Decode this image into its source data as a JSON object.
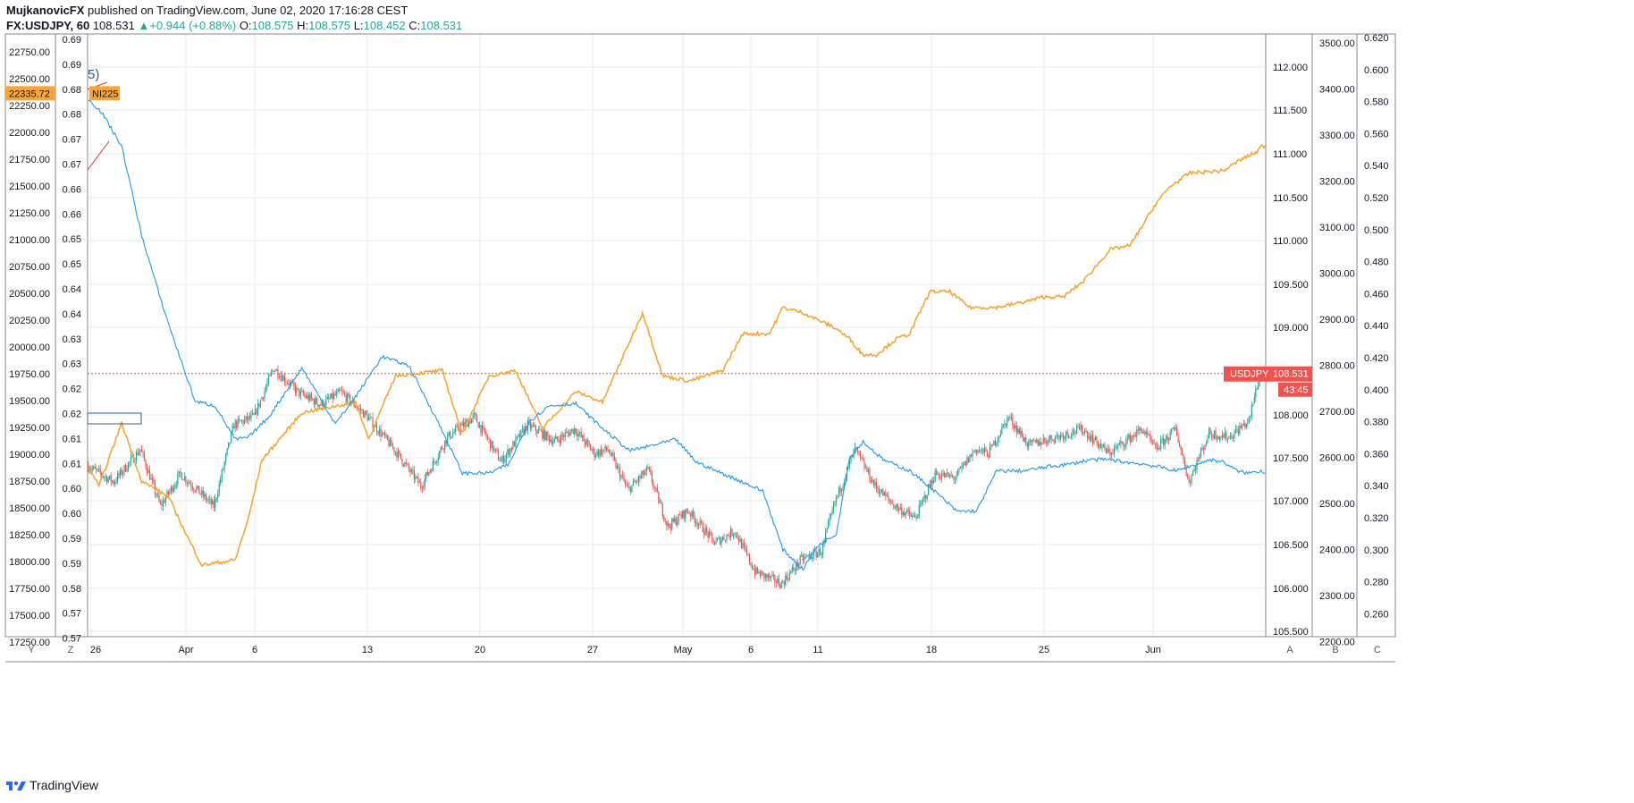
{
  "header": {
    "author": "MujkanovicFX",
    "published_text": "published on TradingView.com, June 02, 2020 17:16:28 CEST",
    "symbol": "FX:USDJPY, 60",
    "last": "108.531",
    "change_arrow": "▲",
    "change": "+0.944 (+0.88%)",
    "o_label": "O:",
    "o_val": "108.575",
    "h_label": "H:",
    "h_val": "108.575",
    "l_label": "L:",
    "l_val": "108.452",
    "c_label": "C:",
    "c_val": "108.531"
  },
  "footer": {
    "brand": "TradingView",
    "brand_icon": "tradingview-logo-icon"
  },
  "axis_buttons": {
    "y": "Y",
    "z": "Z",
    "a": "A",
    "b": "B",
    "c": "C"
  },
  "colors": {
    "up": "#26a69a",
    "down": "#ef5350",
    "nikkei": "#f7a535",
    "blue": "#2196f3",
    "price_tag": "#ef5350",
    "nikkei_tag": "#f7a535",
    "grid": "#e8ebf0"
  },
  "chart_data": {
    "type": "line",
    "title": "FX:USDJPY, 60",
    "x_ticks": [
      "26",
      "Apr",
      "6",
      "13",
      "20",
      "27",
      "May",
      "6",
      "11",
      "18",
      "25",
      "Jun"
    ],
    "axes": {
      "usdjpy_right": {
        "ticks": [
          "112.000",
          "111.500",
          "111.000",
          "110.500",
          "110.000",
          "109.500",
          "109.000",
          "108.000",
          "107.500",
          "107.000",
          "106.500",
          "106.000",
          "105.500"
        ],
        "range": [
          105.3,
          112.7
        ]
      },
      "left_outer": {
        "ticks": [
          "22750.00",
          "22500.00",
          "22250.00",
          "22000.00",
          "21750.00",
          "21500.00",
          "21250.00",
          "21000.00",
          "20750.00",
          "20500.00",
          "20250.00",
          "20000.00",
          "19750.00",
          "19500.00",
          "19250.00",
          "19000.00",
          "18750.00",
          "18500.00",
          "18250.00",
          "18000.00",
          "17750.00",
          "17500.00",
          "17250.00"
        ],
        "range": [
          17170,
          22900
        ]
      },
      "left_inner": {
        "ticks": [
          "0.69",
          "0.69",
          "0.68",
          "0.68",
          "0.67",
          "0.67",
          "0.66",
          "0.66",
          "0.65",
          "0.65",
          "0.64",
          "0.64",
          "0.63",
          "0.63",
          "0.62",
          "0.62",
          "0.61",
          "0.61",
          "0.60",
          "0.60",
          "0.59",
          "0.59",
          "0.58",
          "0.57",
          "0.57"
        ]
      },
      "right_b": {
        "ticks": [
          "3500.00",
          "3400.00",
          "3300.00",
          "3200.00",
          "3100.00",
          "3000.00",
          "2900.00",
          "2800.00",
          "2700.00",
          "2600.00",
          "2500.00",
          "2400.00",
          "2300.00",
          "2200.00"
        ],
        "range": [
          2175,
          3520
        ]
      },
      "right_c": {
        "ticks": [
          "0.620",
          "0.600",
          "0.580",
          "0.560",
          "0.540",
          "0.520",
          "0.500",
          "0.480",
          "0.460",
          "0.440",
          "0.420",
          "0.400",
          "0.380",
          "0.360",
          "0.340",
          "0.320",
          "0.300",
          "0.280",
          "0.260"
        ],
        "range": [
          0.258,
          0.623
        ]
      }
    },
    "series": [
      {
        "name": "USDJPY",
        "axis": "usdjpy_right",
        "style": "candles",
        "anchors": [
          [
            0,
            107.4
          ],
          [
            20,
            107.2
          ],
          [
            40,
            107.6
          ],
          [
            55,
            106.9
          ],
          [
            70,
            107.3
          ],
          [
            95,
            106.9
          ],
          [
            110,
            107.9
          ],
          [
            125,
            108.0
          ],
          [
            140,
            108.6
          ],
          [
            158,
            108.3
          ],
          [
            175,
            108.15
          ],
          [
            190,
            108.3
          ],
          [
            210,
            108.0
          ],
          [
            230,
            107.6
          ],
          [
            250,
            107.15
          ],
          [
            270,
            107.75
          ],
          [
            290,
            108.0
          ],
          [
            310,
            107.45
          ],
          [
            330,
            107.9
          ],
          [
            350,
            107.7
          ],
          [
            365,
            107.85
          ],
          [
            380,
            107.55
          ],
          [
            390,
            107.6
          ],
          [
            405,
            107.1
          ],
          [
            420,
            107.35
          ],
          [
            435,
            106.65
          ],
          [
            450,
            106.85
          ],
          [
            470,
            106.45
          ],
          [
            485,
            106.6
          ],
          [
            500,
            106.1
          ],
          [
            520,
            105.95
          ],
          [
            535,
            106.25
          ],
          [
            550,
            106.35
          ],
          [
            560,
            106.95
          ],
          [
            575,
            107.6
          ],
          [
            590,
            107.15
          ],
          [
            605,
            106.9
          ],
          [
            620,
            106.75
          ],
          [
            635,
            107.3
          ],
          [
            650,
            107.25
          ],
          [
            665,
            107.6
          ],
          [
            675,
            107.55
          ],
          [
            690,
            108.0
          ],
          [
            705,
            107.65
          ],
          [
            725,
            107.75
          ],
          [
            745,
            107.85
          ],
          [
            765,
            107.55
          ],
          [
            790,
            107.85
          ],
          [
            800,
            107.6
          ],
          [
            815,
            107.85
          ],
          [
            825,
            107.2
          ],
          [
            840,
            107.8
          ],
          [
            855,
            107.75
          ],
          [
            870,
            107.95
          ],
          [
            878,
            108.531
          ]
        ],
        "last": 108.531
      },
      {
        "name": "NI225",
        "axis": "left_outer",
        "style": "line",
        "anchors": [
          [
            0,
            18800
          ],
          [
            8,
            18600
          ],
          [
            25,
            19200
          ],
          [
            40,
            18650
          ],
          [
            60,
            18500
          ],
          [
            75,
            18100
          ],
          [
            85,
            17850
          ],
          [
            110,
            17900
          ],
          [
            120,
            18300
          ],
          [
            130,
            18850
          ],
          [
            160,
            19300
          ],
          [
            200,
            19400
          ],
          [
            210,
            19050
          ],
          [
            230,
            19650
          ],
          [
            265,
            19700
          ],
          [
            280,
            19100
          ],
          [
            300,
            19650
          ],
          [
            320,
            19700
          ],
          [
            340,
            19150
          ],
          [
            365,
            19500
          ],
          [
            385,
            19400
          ],
          [
            415,
            20250
          ],
          [
            430,
            19650
          ],
          [
            450,
            19600
          ],
          [
            475,
            19700
          ],
          [
            490,
            20050
          ],
          [
            510,
            20050
          ],
          [
            520,
            20300
          ],
          [
            535,
            20250
          ],
          [
            560,
            20100
          ],
          [
            570,
            20000
          ],
          [
            580,
            19850
          ],
          [
            590,
            19850
          ],
          [
            605,
            20000
          ],
          [
            615,
            20050
          ],
          [
            630,
            20450
          ],
          [
            645,
            20450
          ],
          [
            660,
            20300
          ],
          [
            680,
            20300
          ],
          [
            700,
            20350
          ],
          [
            715,
            20400
          ],
          [
            730,
            20400
          ],
          [
            745,
            20550
          ],
          [
            765,
            20850
          ],
          [
            780,
            20890
          ],
          [
            800,
            21300
          ],
          [
            810,
            21450
          ],
          [
            825,
            21580
          ],
          [
            850,
            21600
          ],
          [
            862,
            21700
          ],
          [
            875,
            21780
          ],
          [
            878,
            21830
          ],
          [
            882,
            21840
          ]
        ],
        "last": 22335.72,
        "last_label": "22335.72",
        "tag": "NI225"
      },
      {
        "name": "",
        "axis": "right_b",
        "style": "line",
        "anchors": [
          [
            0,
            3375
          ],
          [
            10,
            3345
          ],
          [
            25,
            3270
          ],
          [
            40,
            3070
          ],
          [
            55,
            2920
          ],
          [
            65,
            2830
          ],
          [
            80,
            2700
          ],
          [
            95,
            2690
          ],
          [
            110,
            2615
          ],
          [
            120,
            2620
          ],
          [
            135,
            2665
          ],
          [
            160,
            2775
          ],
          [
            185,
            2650
          ],
          [
            200,
            2710
          ],
          [
            220,
            2800
          ],
          [
            240,
            2780
          ],
          [
            260,
            2665
          ],
          [
            280,
            2540
          ],
          [
            300,
            2540
          ],
          [
            315,
            2560
          ],
          [
            330,
            2655
          ],
          [
            345,
            2690
          ],
          [
            365,
            2695
          ],
          [
            385,
            2640
          ],
          [
            405,
            2590
          ],
          [
            420,
            2600
          ],
          [
            440,
            2615
          ],
          [
            455,
            2565
          ],
          [
            470,
            2545
          ],
          [
            490,
            2520
          ],
          [
            505,
            2500
          ],
          [
            520,
            2370
          ],
          [
            535,
            2325
          ],
          [
            545,
            2375
          ],
          [
            560,
            2405
          ],
          [
            570,
            2575
          ],
          [
            580,
            2610
          ],
          [
            595,
            2570
          ],
          [
            615,
            2545
          ],
          [
            630,
            2510
          ],
          [
            650,
            2455
          ],
          [
            665,
            2455
          ],
          [
            680,
            2545
          ],
          [
            700,
            2545
          ],
          [
            720,
            2555
          ],
          [
            735,
            2560
          ],
          [
            750,
            2570
          ],
          [
            765,
            2570
          ],
          [
            775,
            2565
          ],
          [
            790,
            2560
          ],
          [
            800,
            2555
          ],
          [
            815,
            2545
          ],
          [
            825,
            2555
          ],
          [
            840,
            2570
          ],
          [
            850,
            2565
          ],
          [
            860,
            2545
          ],
          [
            868,
            2540
          ],
          [
            878,
            2545
          ],
          [
            882,
            2540
          ]
        ]
      }
    ]
  }
}
